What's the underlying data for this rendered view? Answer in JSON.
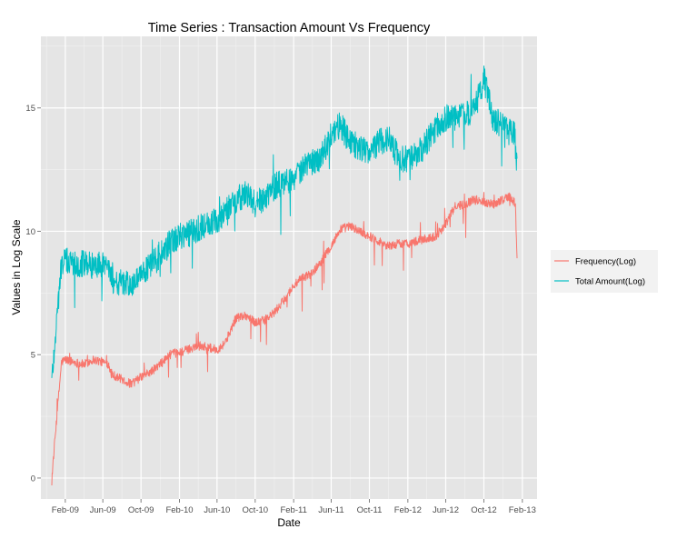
{
  "chart_data": {
    "type": "line",
    "title": "Time Series : Transaction Amount Vs Frequency",
    "xlabel": "Date",
    "ylabel": "Values in Log Scale",
    "x_ticks": [
      "Feb-09",
      "Jun-09",
      "Oct-09",
      "Feb-10",
      "Jun-10",
      "Oct-10",
      "Feb-11",
      "Jun-11",
      "Oct-11",
      "Feb-12",
      "Jun-12",
      "Oct-12",
      "Feb-13"
    ],
    "xlim": [
      "2008-11-15",
      "2013-03-20"
    ],
    "y_ticks": [
      0,
      5,
      10,
      15
    ],
    "ylim": [
      -0.85,
      17.9
    ],
    "grid": true,
    "legend_position": "right",
    "series": [
      {
        "name": "Frequency(Log)",
        "color": "#F8766D",
        "x": [
          "2008-12-20",
          "2009-01-05",
          "2009-01-20",
          "2009-02-01",
          "2009-03-01",
          "2009-04-01",
          "2009-05-01",
          "2009-06-01",
          "2009-06-20",
          "2009-07-01",
          "2009-08-01",
          "2009-09-01",
          "2009-10-01",
          "2009-11-01",
          "2009-12-01",
          "2010-01-01",
          "2010-02-01",
          "2010-03-01",
          "2010-04-01",
          "2010-05-01",
          "2010-06-01",
          "2010-06-20",
          "2010-07-01",
          "2010-08-01",
          "2010-09-01",
          "2010-10-01",
          "2010-11-01",
          "2010-12-01",
          "2011-01-01",
          "2011-02-01",
          "2011-03-01",
          "2011-04-01",
          "2011-05-01",
          "2011-06-01",
          "2011-07-01",
          "2011-08-01",
          "2011-09-01",
          "2011-10-01",
          "2011-11-01",
          "2011-12-01",
          "2012-01-01",
          "2012-02-01",
          "2012-03-01",
          "2012-04-01",
          "2012-05-01",
          "2012-06-01",
          "2012-07-01",
          "2012-08-01",
          "2012-09-01",
          "2012-10-01",
          "2012-11-01",
          "2012-12-01",
          "2012-12-20",
          "2013-01-05",
          "2013-01-10",
          "2013-01-15"
        ],
        "values": [
          0.0,
          2.5,
          4.7,
          4.8,
          4.7,
          4.6,
          4.8,
          4.7,
          4.6,
          4.2,
          4.0,
          3.8,
          4.1,
          4.3,
          4.6,
          5.0,
          5.1,
          5.2,
          5.4,
          5.3,
          5.2,
          5.4,
          5.6,
          6.5,
          6.6,
          6.3,
          6.4,
          6.7,
          7.2,
          7.8,
          8.1,
          8.3,
          8.8,
          9.4,
          10.1,
          10.2,
          10.0,
          9.8,
          9.6,
          9.4,
          9.5,
          9.5,
          9.6,
          9.7,
          9.8,
          10.3,
          11.0,
          11.1,
          11.3,
          11.2,
          11.1,
          11.3,
          11.4,
          11.2,
          11.0,
          9.0
        ]
      },
      {
        "name": "Total Amount(Log)",
        "color": "#00BFC4",
        "x": [
          "2008-12-20",
          "2009-01-05",
          "2009-01-20",
          "2009-02-01",
          "2009-03-01",
          "2009-04-01",
          "2009-05-01",
          "2009-06-01",
          "2009-06-20",
          "2009-07-01",
          "2009-08-01",
          "2009-09-01",
          "2009-10-01",
          "2009-11-01",
          "2009-12-01",
          "2010-01-01",
          "2010-02-01",
          "2010-03-01",
          "2010-04-01",
          "2010-05-01",
          "2010-06-01",
          "2010-06-20",
          "2010-07-01",
          "2010-08-01",
          "2010-09-01",
          "2010-10-01",
          "2010-11-01",
          "2010-12-01",
          "2011-01-01",
          "2011-02-01",
          "2011-03-01",
          "2011-04-01",
          "2011-05-01",
          "2011-06-01",
          "2011-07-01",
          "2011-08-01",
          "2011-09-01",
          "2011-10-01",
          "2011-11-01",
          "2011-12-01",
          "2012-01-01",
          "2012-02-01",
          "2012-03-01",
          "2012-04-01",
          "2012-05-01",
          "2012-06-01",
          "2012-07-01",
          "2012-08-01",
          "2012-09-01",
          "2012-10-01",
          "2012-11-01",
          "2012-12-01",
          "2012-12-20",
          "2013-01-05",
          "2013-01-10",
          "2013-01-15"
        ],
        "values": [
          4.0,
          6.5,
          8.7,
          8.8,
          8.7,
          8.7,
          8.6,
          8.7,
          8.6,
          8.0,
          7.9,
          7.8,
          8.2,
          8.6,
          9.0,
          9.5,
          9.8,
          9.9,
          10.1,
          10.3,
          10.4,
          10.7,
          10.9,
          11.3,
          11.5,
          11.1,
          11.4,
          11.8,
          12.0,
          12.2,
          12.5,
          12.8,
          13.0,
          14.0,
          14.3,
          13.6,
          13.4,
          13.2,
          13.6,
          13.8,
          13.0,
          12.9,
          13.1,
          13.6,
          14.2,
          14.6,
          14.6,
          14.7,
          14.9,
          16.2,
          14.5,
          14.3,
          14.0,
          14.0,
          13.8,
          12.5
        ]
      }
    ]
  }
}
